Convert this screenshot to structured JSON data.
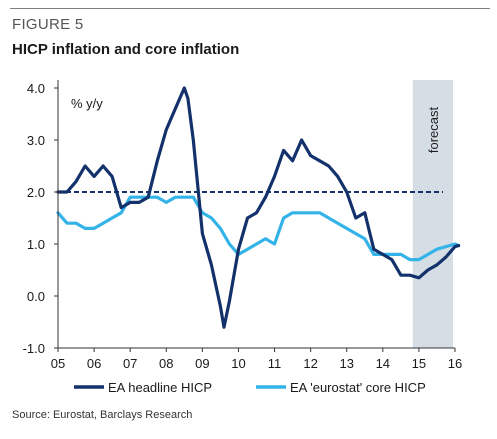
{
  "figure_label": "FIGURE 5",
  "title": "HICP inflation and core inflation",
  "source": "Source: Eurostat, Barclays Research",
  "colors": {
    "headline": "#13316b",
    "core": "#34b3e8",
    "target": "#13316b",
    "forecast_shade": "#d5dde5",
    "axis": "#333333"
  },
  "chart_data": {
    "type": "line",
    "ylabel": "% y/y",
    "ylim": [
      -1.0,
      4.0
    ],
    "yticks": [
      -1.0,
      0.0,
      1.0,
      2.0,
      3.0,
      4.0
    ],
    "ytick_labels": [
      "-1.0",
      "0.0",
      "1.0",
      "2.0",
      "3.0",
      "4.0"
    ],
    "xlim": [
      2005.0,
      2016.0
    ],
    "xticks": [
      2005,
      2006,
      2007,
      2008,
      2009,
      2010,
      2011,
      2012,
      2013,
      2014,
      2015,
      2016
    ],
    "xtick_labels": [
      "05",
      "06",
      "07",
      "08",
      "09",
      "10",
      "11",
      "12",
      "13",
      "14",
      "15",
      "16"
    ],
    "grid": false,
    "legend_position": "bottom",
    "forecast_region": {
      "start": 2014.83,
      "end": 2016.1,
      "label": "forecast"
    },
    "reference_line": {
      "y": 2.0,
      "style": "dashed",
      "from": 2005.0,
      "to": 2016.0
    },
    "series": [
      {
        "name": "EA headline HICP",
        "color": "#13316b",
        "x": [
          2005.0,
          2005.25,
          2005.5,
          2005.75,
          2006.0,
          2006.25,
          2006.5,
          2006.75,
          2007.0,
          2007.25,
          2007.5,
          2007.75,
          2008.0,
          2008.25,
          2008.5,
          2008.6,
          2008.75,
          2009.0,
          2009.25,
          2009.5,
          2009.6,
          2009.75,
          2010.0,
          2010.25,
          2010.5,
          2010.75,
          2011.0,
          2011.25,
          2011.5,
          2011.75,
          2012.0,
          2012.25,
          2012.5,
          2012.75,
          2013.0,
          2013.25,
          2013.5,
          2013.75,
          2014.0,
          2014.25,
          2014.5,
          2014.75,
          2015.0,
          2015.25,
          2015.5,
          2015.75,
          2016.0,
          2016.1
        ],
        "values": [
          2.0,
          2.0,
          2.2,
          2.5,
          2.3,
          2.5,
          2.3,
          1.7,
          1.8,
          1.8,
          1.9,
          2.6,
          3.2,
          3.6,
          4.0,
          3.8,
          3.0,
          1.2,
          0.6,
          -0.2,
          -0.6,
          -0.1,
          0.9,
          1.5,
          1.6,
          1.9,
          2.3,
          2.8,
          2.6,
          3.0,
          2.7,
          2.6,
          2.5,
          2.3,
          2.0,
          1.5,
          1.6,
          0.9,
          0.8,
          0.7,
          0.4,
          0.4,
          0.35,
          0.5,
          0.6,
          0.75,
          0.95,
          0.97
        ]
      },
      {
        "name": "EA 'eurostat' core HICP",
        "color": "#34b3e8",
        "x": [
          2005.0,
          2005.25,
          2005.5,
          2005.75,
          2006.0,
          2006.25,
          2006.5,
          2006.75,
          2007.0,
          2007.25,
          2007.5,
          2007.75,
          2008.0,
          2008.25,
          2008.5,
          2008.75,
          2009.0,
          2009.25,
          2009.5,
          2009.75,
          2010.0,
          2010.25,
          2010.5,
          2010.75,
          2011.0,
          2011.25,
          2011.5,
          2011.75,
          2012.0,
          2012.25,
          2012.5,
          2012.75,
          2013.0,
          2013.25,
          2013.5,
          2013.75,
          2014.0,
          2014.25,
          2014.5,
          2014.75,
          2015.0,
          2015.25,
          2015.5,
          2015.75,
          2016.0,
          2016.1
        ],
        "values": [
          1.6,
          1.4,
          1.4,
          1.3,
          1.3,
          1.4,
          1.5,
          1.6,
          1.9,
          1.9,
          1.9,
          1.9,
          1.8,
          1.9,
          1.9,
          1.9,
          1.6,
          1.5,
          1.3,
          1.0,
          0.8,
          0.9,
          1.0,
          1.1,
          1.0,
          1.5,
          1.6,
          1.6,
          1.6,
          1.6,
          1.5,
          1.4,
          1.3,
          1.2,
          1.1,
          0.8,
          0.8,
          0.8,
          0.8,
          0.7,
          0.7,
          0.8,
          0.9,
          0.95,
          1.0,
          0.97
        ]
      }
    ]
  }
}
